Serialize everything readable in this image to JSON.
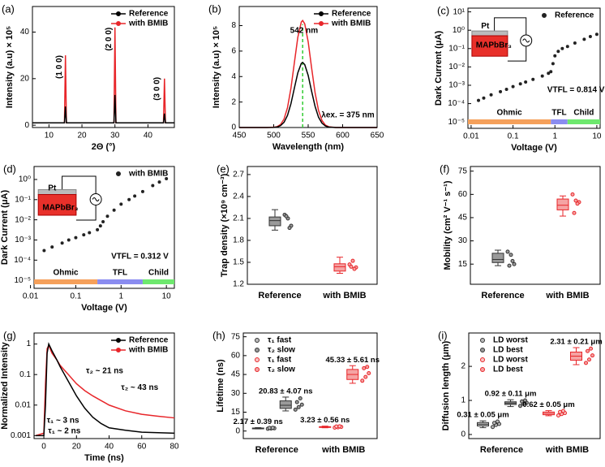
{
  "chart_data": [
    {
      "type": "line",
      "label": "(a)",
      "xlabel": "2Θ (°)",
      "ylabel": "Intensity (a.u) × 10⁵",
      "xlim": [
        5,
        48
      ],
      "xticks": [
        10,
        20,
        30,
        40
      ],
      "ylim": [
        -1,
        51
      ],
      "yticks": [
        0,
        20,
        40
      ],
      "legend": "upper right",
      "x": [
        5,
        14.7,
        15,
        15.3,
        29.7,
        30,
        30.3,
        44.7,
        45,
        45.3,
        48
      ],
      "series": [
        {
          "name": "Reference",
          "color": "#000000",
          "values": [
            1,
            1,
            8,
            1,
            1,
            13,
            1,
            1,
            5,
            1,
            1
          ]
        },
        {
          "name": "with BMIB",
          "color": "#e8262a",
          "values": [
            1,
            1,
            30,
            1,
            1,
            42,
            1,
            1,
            20,
            1,
            1
          ]
        }
      ],
      "annotations": [
        "(1 0 0)",
        "(2 0 0)",
        "(3 0 0)"
      ]
    },
    {
      "type": "line",
      "label": "(b)",
      "xlabel": "Wavelength (nm)",
      "ylabel": "Intensity (a.u) × 10⁵",
      "xlim": [
        450,
        650
      ],
      "xticks": [
        450,
        500,
        550,
        600,
        650
      ],
      "ylim": [
        0,
        9.5
      ],
      "yticks": [
        0,
        2,
        4,
        6,
        8
      ],
      "legend": "upper right",
      "x": [
        450,
        490,
        500,
        505,
        510,
        515,
        520,
        525,
        530,
        535,
        540,
        542,
        545,
        550,
        555,
        560,
        565,
        570,
        575,
        580,
        590,
        650
      ],
      "series": [
        {
          "name": "Reference",
          "color": "#000000",
          "values": [
            0,
            0,
            0.01,
            0.04,
            0.15,
            0.41,
            0.95,
            1.87,
            3.1,
            4.3,
            5.03,
            5.1,
            4.94,
            4.09,
            2.84,
            1.66,
            0.81,
            0.34,
            0.12,
            0.03,
            0,
            0
          ]
        },
        {
          "name": "with BMIB",
          "color": "#e8262a",
          "values": [
            0,
            0,
            0.02,
            0.07,
            0.24,
            0.67,
            1.56,
            3.08,
            5.1,
            7.09,
            8.28,
            8.4,
            8.14,
            6.73,
            4.67,
            2.73,
            1.34,
            0.55,
            0.19,
            0.06,
            0,
            0
          ]
        }
      ],
      "vline": 542,
      "vline_color": "#33cc33",
      "annotations": [
        "542 nm",
        "λex. = 375 nm"
      ]
    },
    {
      "type": "scatter",
      "label": "(c)",
      "xlabel": "Voltage (V)",
      "ylabel": "Dark Current (μA)",
      "xlog": true,
      "ylog": true,
      "xlim": [
        0.0084,
        12
      ],
      "xticks": [
        0.01,
        0.1,
        1,
        10
      ],
      "ylim": [
        4.5e-06,
        16
      ],
      "yticks": [
        {
          "value": 1e-05,
          "label": "10⁻⁵"
        },
        {
          "value": 0.0001,
          "label": "10⁻⁴"
        },
        {
          "value": 0.001,
          "label": "10⁻³"
        },
        {
          "value": 0.01,
          "label": "10⁻²"
        },
        {
          "value": 0.1,
          "label": "10⁻¹"
        },
        {
          "value": 1,
          "label": "10⁰"
        },
        {
          "value": 10,
          "label": "10¹"
        }
      ],
      "legend": "upper right",
      "x": [
        0.015,
        0.02,
        0.03,
        0.05,
        0.07,
        0.1,
        0.15,
        0.2,
        0.3,
        0.5,
        0.7,
        0.8,
        0.9,
        1,
        1.2,
        1.5,
        2,
        3,
        5,
        7,
        10
      ],
      "series": [
        {
          "name": "Reference",
          "color": "#222222",
          "values": [
            0.00015,
            0.0002,
            0.0003,
            0.00045,
            0.0006,
            0.00085,
            0.0012,
            0.0015,
            0.0021,
            0.0032,
            0.0045,
            0.0055,
            0.015,
            0.04,
            0.07,
            0.1,
            0.13,
            0.2,
            0.32,
            0.45,
            0.6
          ]
        }
      ],
      "regions": [
        {
          "label": "Ohmic",
          "from": 0.0084,
          "to": 0.8,
          "color": "#f5a05a"
        },
        {
          "label": "TFL",
          "from": 0.8,
          "to": 2,
          "color": "#8a8cf0"
        },
        {
          "label": "Child",
          "from": 2,
          "to": 12,
          "color": "#6ee86e"
        }
      ],
      "annotations": [
        "Pt",
        "MAPbBr₃",
        "VTFL = 0.814 V"
      ]
    },
    {
      "type": "scatter",
      "label": "(d)",
      "xlabel": "Voltage (V)",
      "ylabel": "Dark Current (μA)",
      "xlog": true,
      "ylog": true,
      "xlim": [
        0.012,
        15
      ],
      "xticks": [
        0.01,
        0.1,
        1,
        10
      ],
      "ylim": [
        4e-06,
        4.4
      ],
      "yticks": [
        {
          "value": 1e-05,
          "label": "10⁻⁵"
        },
        {
          "value": 0.0001,
          "label": "10⁻⁴"
        },
        {
          "value": 0.001,
          "label": "10⁻³"
        },
        {
          "value": 0.01,
          "label": "10⁻²"
        },
        {
          "value": 0.1,
          "label": "10⁻¹"
        },
        {
          "value": 1,
          "label": "10⁰"
        }
      ],
      "legend": "upper right",
      "x": [
        0.02,
        0.03,
        0.05,
        0.07,
        0.1,
        0.15,
        0.2,
        0.3,
        0.35,
        0.4,
        0.5,
        0.7,
        1,
        1.5,
        2,
        3,
        5,
        7,
        10
      ],
      "series": [
        {
          "name": "with BMIB",
          "color": "#222222",
          "values": [
            0.0003,
            0.00045,
            0.0007,
            0.001,
            0.0013,
            0.0018,
            0.0023,
            0.0032,
            0.005,
            0.008,
            0.015,
            0.03,
            0.06,
            0.1,
            0.15,
            0.25,
            0.5,
            0.75,
            1.1
          ]
        }
      ],
      "regions": [
        {
          "label": "Ohmic",
          "from": 0.012,
          "to": 0.3,
          "color": "#f5a05a"
        },
        {
          "label": "TFL",
          "from": 0.3,
          "to": 3,
          "color": "#8a8cf0"
        },
        {
          "label": "Child",
          "from": 3,
          "to": 15,
          "color": "#6ee86e"
        }
      ],
      "annotations": [
        "Pt",
        "MAPbBr₃",
        "VTFL = 0.312 V"
      ]
    },
    {
      "type": "box",
      "label": "(e)",
      "ylabel": "Trap density (×10⁹ cm⁻³)",
      "ylim": [
        1.2,
        2.81
      ],
      "yticks": [
        1.2,
        1.5,
        1.8,
        2.1,
        2.4,
        2.7
      ],
      "categories": [
        "Reference",
        "with BMIB"
      ],
      "boxes": [
        {
          "category": 0,
          "color": "#333333",
          "fill": "#9a9a9a",
          "stats": [
            1.94,
            2.0,
            2.07,
            2.12,
            2.22
          ],
          "points": [
            2.15,
            2.1,
            2.0,
            2.13,
            1.97
          ]
        },
        {
          "category": 1,
          "color": "#e8262a",
          "fill": "#f5a3a3",
          "stats": [
            1.35,
            1.38,
            1.44,
            1.48,
            1.57
          ],
          "points": [
            1.47,
            1.52,
            1.43,
            1.44,
            1.41
          ]
        }
      ]
    },
    {
      "type": "box",
      "label": "(f)",
      "ylabel": "Mobility (cm² V⁻¹ s⁻¹)",
      "ylim": [
        2,
        78
      ],
      "yticks": [
        15,
        30,
        45,
        60,
        75
      ],
      "categories": [
        "Reference",
        "with BMIB"
      ],
      "boxes": [
        {
          "category": 0,
          "color": "#333333",
          "fill": "#9a9a9a",
          "stats": [
            14,
            16,
            18,
            22,
            24
          ],
          "points": [
            23,
            21,
            15,
            14,
            17
          ]
        },
        {
          "category": 1,
          "color": "#e8262a",
          "fill": "#f5a3a3",
          "stats": [
            46,
            50,
            53,
            57,
            59
          ],
          "points": [
            60,
            56,
            55,
            48,
            54
          ]
        }
      ]
    },
    {
      "type": "line",
      "label": "(g)",
      "xlabel": "Time (ns)",
      "ylabel": "Normalized Intensity",
      "ylog": true,
      "xlim": [
        -6,
        80
      ],
      "xticks": [
        0,
        20,
        40,
        60,
        80
      ],
      "ylim": [
        0.0008,
        2.3
      ],
      "yticks": [
        0.001,
        0.01,
        0.1,
        1
      ],
      "legend": "upper right",
      "series": [
        {
          "name": "Reference",
          "color": "#000000",
          "x": [
            -5,
            0,
            1,
            2,
            3,
            5,
            8,
            10,
            15,
            20,
            25,
            30,
            35,
            40,
            50,
            60,
            80
          ],
          "values": [
            0.001,
            0.001,
            0.01,
            0.5,
            1,
            0.6,
            0.3,
            0.18,
            0.06,
            0.02,
            0.008,
            0.004,
            0.0025,
            0.0018,
            0.0015,
            0.0013,
            0.0012
          ]
        },
        {
          "name": "with BMIB",
          "color": "#e8262a",
          "x": [
            -5,
            0,
            1,
            2,
            3,
            5,
            8,
            10,
            15,
            20,
            25,
            30,
            40,
            50,
            60,
            70,
            80
          ],
          "values": [
            0.001,
            0.0012,
            0.05,
            0.7,
            0.9,
            0.5,
            0.3,
            0.2,
            0.1,
            0.05,
            0.03,
            0.02,
            0.01,
            0.0065,
            0.005,
            0.0043,
            0.0038
          ]
        }
      ],
      "annotations": [
        "τ₂ ~ 21 ns",
        "τ₂ ~ 43 ns",
        "τ₁ ~ 3 ns",
        "τ₁ ~ 2 ns"
      ]
    },
    {
      "type": "box",
      "label": "(h)",
      "ylabel": "Lifetime (ns)",
      "ylim": [
        -6,
        78
      ],
      "yticks": [
        0,
        15,
        30,
        45,
        60,
        75
      ],
      "legend": "upper left",
      "categories": [
        "Reference",
        "with BMIB"
      ],
      "boxes": [
        {
          "name": "τ₁ fast",
          "category": 0,
          "color": "#333333",
          "fill": "#bbbbbb",
          "stats": [
            1.7,
            1.9,
            2.1,
            2.4,
            2.7
          ],
          "points": [
            1.8,
            2.0,
            2.2,
            2.5,
            2.6
          ],
          "label": "2.17 ± 0.39 ns"
        },
        {
          "name": "τ₂ slow",
          "category": 0,
          "color": "#333333",
          "fill": "#9a9a9a",
          "stats": [
            16,
            18,
            20.5,
            24,
            27
          ],
          "points": [
            17,
            19,
            21,
            23,
            26
          ],
          "label": "20.83 ± 4.07 ns"
        },
        {
          "name": "τ₁ fast",
          "category": 1,
          "color": "#e8262a",
          "fill": "#f8c4c4",
          "stats": [
            2.6,
            2.9,
            3.2,
            3.5,
            3.9
          ],
          "points": [
            2.7,
            3.0,
            3.3,
            3.6,
            3.8
          ],
          "label": "3.23 ± 0.56 ns"
        },
        {
          "name": "τ₂ slow",
          "category": 1,
          "color": "#e8262a",
          "fill": "#f5a3a3",
          "stats": [
            38,
            41,
            45,
            49,
            52
          ],
          "points": [
            40,
            43,
            46,
            50,
            51
          ],
          "label": "45.33 ± 5.61 ns"
        }
      ]
    },
    {
      "type": "box",
      "label": "(i)",
      "ylabel": "Diffusion length (μm)",
      "ylim": [
        -0.12,
        2.98
      ],
      "yticks": [
        0,
        1,
        2
      ],
      "legend": "upper left",
      "categories": [
        "Reference",
        "with BMIB"
      ],
      "boxes": [
        {
          "name": "LD worst",
          "category": 0,
          "color": "#333333",
          "fill": "#bbbbbb",
          "stats": [
            0.2,
            0.25,
            0.3,
            0.35,
            0.4
          ],
          "points": [
            0.22,
            0.28,
            0.31,
            0.34,
            0.38
          ],
          "label": "0.31 ± 0.05 μm"
        },
        {
          "name": "LD best",
          "category": 0,
          "color": "#333333",
          "fill": "#9a9a9a",
          "stats": [
            0.82,
            0.88,
            0.92,
            0.96,
            1.02
          ],
          "points": [
            0.84,
            0.9,
            0.93,
            0.97,
            1.0
          ],
          "label": "0.92 ± 0.11 μm"
        },
        {
          "name": "LD worst",
          "category": 1,
          "color": "#e8262a",
          "fill": "#f8c4c4",
          "stats": [
            0.55,
            0.58,
            0.62,
            0.66,
            0.7
          ],
          "points": [
            0.56,
            0.6,
            0.63,
            0.66,
            0.69
          ],
          "label": "0.62 ± 0.05 μm"
        },
        {
          "name": "LD best",
          "category": 1,
          "color": "#e8262a",
          "fill": "#f5a3a3",
          "stats": [
            2.05,
            2.18,
            2.3,
            2.42,
            2.55
          ],
          "points": [
            2.1,
            2.2,
            2.32,
            2.45,
            2.52
          ],
          "label": "2.31 ± 0.21 μm"
        }
      ]
    }
  ]
}
